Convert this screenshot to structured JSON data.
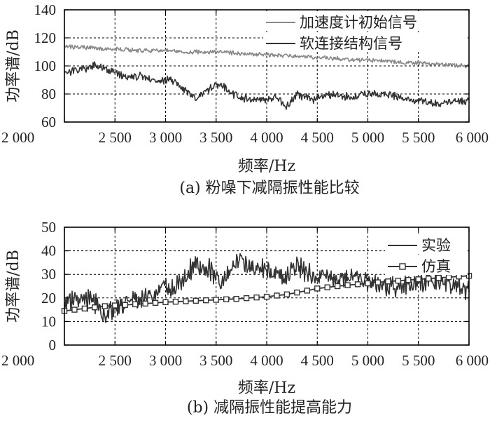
{
  "chart_data": [
    {
      "type": "line",
      "caption": "(a) 粉噪下减隔振性能比较",
      "xlabel": "频率/Hz",
      "ylabel": "功率谱/dB",
      "xlim": [
        2000,
        6000
      ],
      "ylim": [
        60,
        140
      ],
      "xticks": [
        2000,
        2500,
        3000,
        3500,
        4000,
        4500,
        5000,
        5500,
        6000
      ],
      "xtick_labels": [
        "2 000",
        "2 500",
        "3 000",
        "3 500",
        "4 000",
        "4 500",
        "5 000",
        "5 500",
        "6 000"
      ],
      "yticks": [
        60,
        80,
        100,
        120,
        140
      ],
      "ytick_labels": [
        "60",
        "80",
        "100",
        "120",
        "140"
      ],
      "grid": true,
      "legend_position": "top-right",
      "series": [
        {
          "name": "加速度计初始信号",
          "color": "#888888",
          "noise": 1.2,
          "x": [
            2000,
            2250,
            2500,
            2750,
            3000,
            3250,
            3500,
            3750,
            4000,
            4250,
            4500,
            4750,
            5000,
            5250,
            5500,
            5750,
            6000
          ],
          "y": [
            114,
            113,
            112,
            111,
            111,
            110,
            110,
            109,
            108,
            107,
            106,
            105,
            104,
            103,
            102,
            101,
            100
          ]
        },
        {
          "name": "软连接结构信号",
          "color": "#333333",
          "noise": 2.2,
          "x": [
            2000,
            2150,
            2300,
            2450,
            2600,
            2750,
            2900,
            3050,
            3200,
            3300,
            3400,
            3500,
            3550,
            3650,
            3750,
            3850,
            4000,
            4100,
            4200,
            4300,
            4450,
            4600,
            4800,
            5000,
            5200,
            5350,
            5500,
            5700,
            5850,
            6000
          ],
          "y": [
            95,
            97,
            100,
            97,
            92,
            93,
            89,
            90,
            82,
            77,
            82,
            86,
            87,
            80,
            77,
            76,
            76,
            78,
            71,
            80,
            76,
            80,
            78,
            80,
            80,
            76,
            75,
            73,
            75,
            75
          ]
        }
      ]
    },
    {
      "type": "line",
      "caption": "(b) 减隔振性能提高能力",
      "xlabel": "频率/Hz",
      "ylabel": "功率谱/dB",
      "xlim": [
        2000,
        6000
      ],
      "ylim": [
        0,
        50
      ],
      "xticks": [
        2000,
        2500,
        3000,
        3500,
        4000,
        4500,
        5000,
        5500,
        6000
      ],
      "xtick_labels": [
        "2 000",
        "2 500",
        "3 000",
        "3 500",
        "4 000",
        "4 500",
        "5 000",
        "5 500",
        "6 000"
      ],
      "yticks": [
        0,
        10,
        20,
        30,
        40,
        50
      ],
      "ytick_labels": [
        "0",
        "10",
        "20",
        "30",
        "40",
        "50"
      ],
      "grid": true,
      "legend_position": "top-right",
      "series": [
        {
          "name": "实验",
          "color": "#333333",
          "noise": 3.5,
          "x": [
            2000,
            2150,
            2300,
            2400,
            2500,
            2650,
            2800,
            2950,
            3100,
            3200,
            3300,
            3450,
            3550,
            3650,
            3750,
            3850,
            4000,
            4100,
            4200,
            4300,
            4400,
            4550,
            4700,
            4850,
            5000,
            5150,
            5300,
            5450,
            5600,
            5750,
            5900,
            6000
          ],
          "y": [
            18,
            20,
            18,
            13,
            16,
            18,
            21,
            24,
            24,
            30,
            35,
            31,
            26,
            34,
            35,
            33,
            32,
            30,
            29,
            35,
            30,
            29,
            27,
            29,
            27,
            25,
            25,
            26,
            27,
            27,
            25,
            23
          ]
        },
        {
          "name": "仿真",
          "color": "#333333",
          "marker": "square",
          "x": [
            2000,
            2100,
            2200,
            2300,
            2400,
            2500,
            2600,
            2700,
            2800,
            2900,
            3000,
            3100,
            3200,
            3300,
            3400,
            3500,
            3600,
            3700,
            3800,
            3900,
            4000,
            4100,
            4200,
            4300,
            4400,
            4500,
            4600,
            4700,
            4800,
            4900,
            5000,
            5100,
            5200,
            5300,
            5400,
            5500,
            5600,
            5700,
            5800,
            5900,
            6000
          ],
          "y": [
            14.5,
            15,
            15.5,
            16,
            16.5,
            16.8,
            17,
            17.3,
            17.6,
            17.9,
            18.2,
            18.4,
            18.6,
            18.8,
            19,
            19.2,
            19.4,
            19.6,
            19.9,
            20.2,
            20.5,
            21,
            21.5,
            22.3,
            23.1,
            24,
            24.5,
            25,
            25.4,
            25.8,
            26.2,
            26.6,
            27,
            27.3,
            27.6,
            27.9,
            28.2,
            28.5,
            28.8,
            29.1,
            29.4
          ]
        }
      ]
    }
  ]
}
